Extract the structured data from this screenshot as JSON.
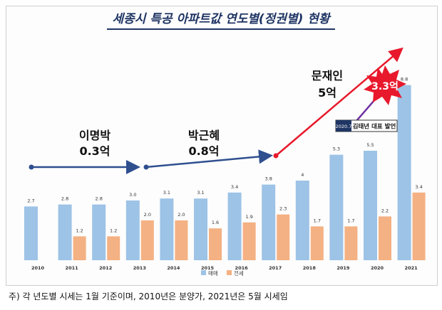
{
  "title": "세종시 특공 아파트값 연도별(정권별) 현황",
  "footnote": "주) 각 년도별 시세는 1월 기준이며, 2010년은 분양가, 2021년은 5월 시세임",
  "colors": {
    "sale": "#9dc3e6",
    "jeonse": "#f4b183",
    "arrow_blue": "#2f4f8f",
    "arrow_red": "#e8192c",
    "arrow_purple": "#7030a0",
    "burst": "#e8192c"
  },
  "eras": [
    {
      "name": "이명박",
      "amount": "0.3억"
    },
    {
      "name": "박근혜",
      "amount": "0.8억"
    },
    {
      "name": "문재인",
      "amount": "5억"
    }
  ],
  "burst_label": "3.3억",
  "annotation": {
    "date": "2020.7",
    "text": "김태년 대표 발언"
  },
  "chart_data": {
    "type": "bar",
    "categories": [
      "2010",
      "2011",
      "2012",
      "2013",
      "2014",
      "2015",
      "2016",
      "2017",
      "2018",
      "2019",
      "2020",
      "2021"
    ],
    "series": [
      {
        "name": "매매",
        "values": [
          2.7,
          2.8,
          2.8,
          3.0,
          3.1,
          3.1,
          3.4,
          3.8,
          4,
          5.3,
          5.5,
          8.8
        ]
      },
      {
        "name": "전세",
        "values": [
          null,
          1.2,
          1.2,
          2.0,
          2.0,
          1.6,
          1.9,
          2.3,
          1.7,
          1.7,
          2.2,
          3.4
        ]
      }
    ],
    "value_labels": {
      "매매": [
        "2.7",
        "2.8",
        "2.8",
        "3.0",
        "3.1",
        "3.1",
        "3.4",
        "3.8",
        "4",
        "5.3",
        "5.5",
        "8.8"
      ],
      "전세": [
        "",
        "1.2",
        "1.2",
        "2.0",
        "2.0",
        "1.6",
        "1.9",
        "2.3",
        "1.7",
        "1.7",
        "2.2",
        "3.4"
      ]
    },
    "ylim": [
      0,
      10
    ],
    "legend_position": "bottom-center"
  }
}
